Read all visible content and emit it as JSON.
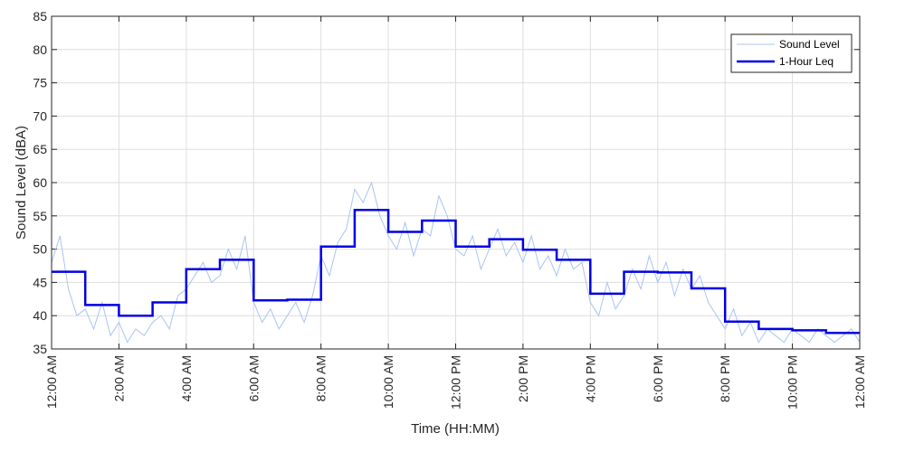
{
  "chart_data": {
    "type": "line",
    "xlabel": "Time (HH:MM)",
    "ylabel": "Sound Level (dBA)",
    "xlim": [
      0,
      24
    ],
    "ylim": [
      35,
      85
    ],
    "x_ticks": [
      {
        "hour": 0,
        "label": "12:00 AM"
      },
      {
        "hour": 2,
        "label": "2:00 AM"
      },
      {
        "hour": 4,
        "label": "4:00 AM"
      },
      {
        "hour": 6,
        "label": "6:00 AM"
      },
      {
        "hour": 8,
        "label": "8:00 AM"
      },
      {
        "hour": 10,
        "label": "10:00 AM"
      },
      {
        "hour": 12,
        "label": "12:00 PM"
      },
      {
        "hour": 14,
        "label": "2:00 PM"
      },
      {
        "hour": 16,
        "label": "4:00 PM"
      },
      {
        "hour": 18,
        "label": "6:00 PM"
      },
      {
        "hour": 20,
        "label": "8:00 PM"
      },
      {
        "hour": 22,
        "label": "10:00 PM"
      },
      {
        "hour": 24,
        "label": "12:00 AM"
      }
    ],
    "y_ticks": [
      35,
      40,
      45,
      50,
      55,
      60,
      65,
      70,
      75,
      80,
      85
    ],
    "grid": true,
    "legend_position": "top-right",
    "series": [
      {
        "name": "Sound Level",
        "style": "thin-line",
        "color": "#a9c4f2",
        "x_hours": [
          0,
          0.25,
          0.5,
          0.75,
          1,
          1.25,
          1.5,
          1.75,
          2,
          2.25,
          2.5,
          2.75,
          3,
          3.25,
          3.5,
          3.75,
          4,
          4.25,
          4.5,
          4.75,
          5,
          5.25,
          5.5,
          5.75,
          6,
          6.25,
          6.5,
          6.75,
          7,
          7.25,
          7.5,
          7.75,
          8,
          8.25,
          8.5,
          8.75,
          9,
          9.25,
          9.5,
          9.75,
          10,
          10.25,
          10.5,
          10.75,
          11,
          11.25,
          11.5,
          11.75,
          12,
          12.25,
          12.5,
          12.75,
          13,
          13.25,
          13.5,
          13.75,
          14,
          14.25,
          14.5,
          14.75,
          15,
          15.25,
          15.5,
          15.75,
          16,
          16.25,
          16.5,
          16.75,
          17,
          17.25,
          17.5,
          17.75,
          18,
          18.25,
          18.5,
          18.75,
          19,
          19.25,
          19.5,
          19.75,
          20,
          20.25,
          20.5,
          20.75,
          21,
          21.25,
          21.5,
          21.75,
          22,
          22.25,
          22.5,
          22.75,
          23,
          23.25,
          23.5,
          23.75,
          24
        ],
        "values": [
          48,
          52,
          44,
          40,
          41,
          38,
          42,
          37,
          39,
          36,
          38,
          37,
          39,
          40,
          38,
          43,
          44,
          46,
          48,
          45,
          46,
          50,
          47,
          52,
          42,
          39,
          41,
          38,
          40,
          42,
          39,
          43,
          49,
          46,
          51,
          53,
          59,
          57,
          60,
          55,
          52,
          50,
          54,
          49,
          53,
          52,
          58,
          55,
          50,
          49,
          52,
          47,
          50,
          53,
          49,
          51,
          48,
          52,
          47,
          49,
          46,
          50,
          47,
          48,
          42,
          40,
          45,
          41,
          43,
          47,
          44,
          49,
          45,
          48,
          43,
          47,
          44,
          46,
          42,
          40,
          38,
          41,
          37,
          39,
          36,
          38,
          37,
          36,
          38,
          37,
          36,
          38,
          37,
          36,
          37,
          38,
          36
        ]
      },
      {
        "name": "1-Hour Leq",
        "style": "step",
        "color": "#0000e6",
        "hours": [
          0,
          1,
          2,
          3,
          4,
          5,
          6,
          7,
          8,
          9,
          10,
          11,
          12,
          13,
          14,
          15,
          16,
          17,
          18,
          19,
          20,
          21,
          22,
          23
        ],
        "values": [
          46.6,
          41.6,
          40.0,
          42.0,
          47.0,
          48.4,
          42.3,
          42.4,
          50.4,
          55.9,
          52.6,
          54.3,
          50.4,
          51.5,
          49.9,
          48.4,
          43.3,
          46.6,
          46.5,
          44.1,
          39.1,
          38.0,
          37.8,
          37.4
        ]
      }
    ]
  }
}
